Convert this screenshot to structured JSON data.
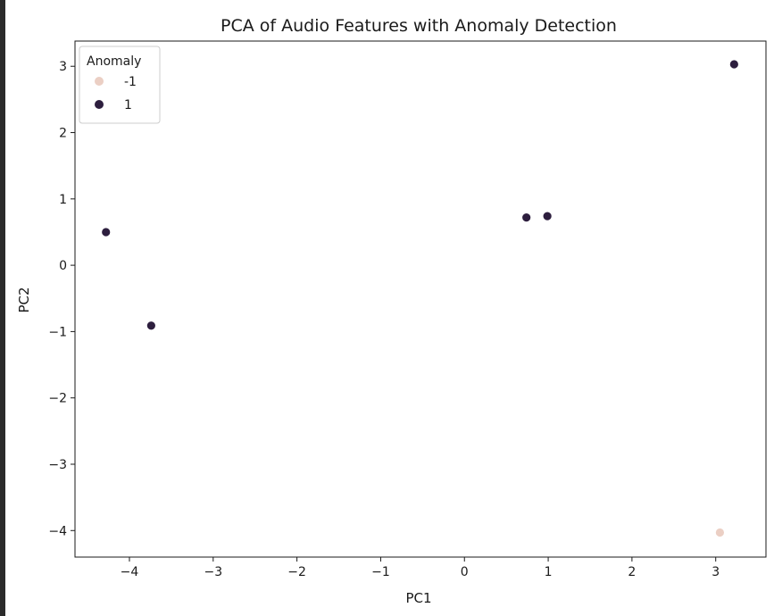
{
  "chart_data": {
    "type": "scatter",
    "title": "PCA of Audio Features with Anomaly Detection",
    "xlabel": "PC1",
    "ylabel": "PC2",
    "xlim": [
      -4.65,
      3.6
    ],
    "ylim": [
      -4.4,
      3.38
    ],
    "xticks": [
      -4,
      -3,
      -2,
      -1,
      0,
      1,
      2,
      3
    ],
    "yticks": [
      -4,
      -3,
      -2,
      -1,
      0,
      1,
      2,
      3
    ],
    "grid": false,
    "legend": {
      "title": "Anomaly",
      "placement": "top-left",
      "entries": [
        {
          "label": "-1",
          "color": "#ebcfc4"
        },
        {
          "label": "1",
          "color": "#2d1e3e"
        }
      ]
    },
    "series": [
      {
        "name": "-1",
        "color": "#ebcfc4",
        "points": [
          {
            "x": 3.05,
            "y": -4.03
          }
        ]
      },
      {
        "name": "1",
        "color": "#2d1e3e",
        "points": [
          {
            "x": -4.28,
            "y": 0.5
          },
          {
            "x": -3.74,
            "y": -0.91
          },
          {
            "x": 0.74,
            "y": 0.72
          },
          {
            "x": 0.99,
            "y": 0.74
          },
          {
            "x": 3.22,
            "y": 3.03
          }
        ]
      }
    ]
  }
}
